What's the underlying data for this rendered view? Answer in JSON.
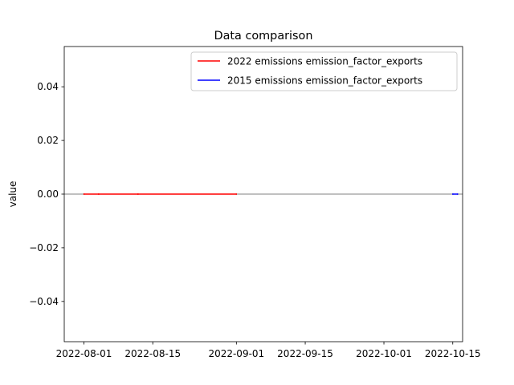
{
  "chart_data": {
    "type": "line",
    "title": "Data comparison",
    "xlabel": "",
    "ylabel": "value",
    "xlim": [
      "2022-07-28",
      "2022-10-17"
    ],
    "ylim": [
      -0.055,
      0.055
    ],
    "x_ticks": [
      "2022-08-01",
      "2022-08-15",
      "2022-09-01",
      "2022-09-15",
      "2022-10-01",
      "2022-10-15"
    ],
    "y_ticks": [
      0.04,
      0.02,
      0.0,
      -0.02,
      -0.04
    ],
    "y_tick_labels": [
      "0.04",
      "0.02",
      "0.00",
      "−0.02",
      "−0.04"
    ],
    "reference_line": {
      "y": 0,
      "color": "#808080"
    },
    "legend_position": "top-right",
    "grid": false,
    "series": [
      {
        "name": "2022 emissions emission_factor_exports",
        "color": "#ff0000",
        "x": [
          "2022-08-01",
          "2022-08-04",
          "2022-08-12",
          "2022-09-01"
        ],
        "y": [
          0,
          0,
          0,
          0
        ]
      },
      {
        "name": "2015 emissions emission_factor_exports",
        "color": "#0000ff",
        "x": [
          "2022-10-15",
          "2022-10-16"
        ],
        "y": [
          0,
          0
        ]
      }
    ]
  }
}
